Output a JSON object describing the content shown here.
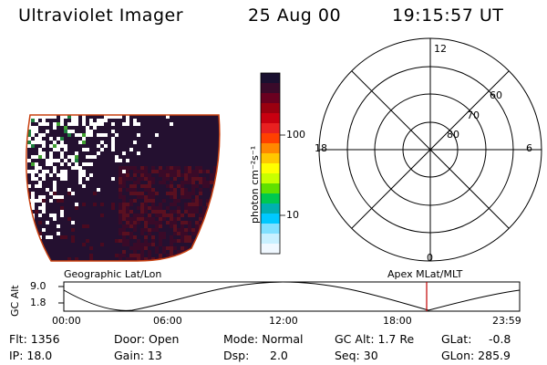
{
  "header": {
    "title": "Ultraviolet Imager",
    "date": "25 Aug 00",
    "time": "19:15:57 UT"
  },
  "colorbar": {
    "unit_label": "photon cm⁻²s⁻¹",
    "ticks": [
      "100",
      "10"
    ],
    "colors": [
      "#1a1030",
      "#3a0a2a",
      "#6a0020",
      "#9a0010",
      "#c80010",
      "#e82020",
      "#ff4000",
      "#ff8800",
      "#ffc800",
      "#ffff00",
      "#c8ff00",
      "#60e000",
      "#00c850",
      "#00b0b0",
      "#00c8ff",
      "#80e0ff",
      "#c8f0ff",
      "#f0f8ff"
    ]
  },
  "polar": {
    "mlt_labels": {
      "top": "12",
      "left": "18",
      "right": "6",
      "bottom": "0"
    },
    "lat_labels": [
      "60",
      "70",
      "80"
    ]
  },
  "plot": {
    "left_label": "Geographic Lat/Lon",
    "right_label": "Apex MLat/MLT",
    "y_axis_label": "GC Alt",
    "y_ticks": [
      "9.0",
      "1.8"
    ],
    "x_ticks": [
      "00:00",
      "06:00",
      "12:00",
      "18:00",
      "23:59"
    ]
  },
  "info": {
    "flt": "Flt: 1356",
    "ip": "IP: 18.0",
    "door": "Door: Open",
    "gain": "Gain: 13",
    "mode": "Mode: Normal",
    "dsp": "Dsp:",
    "dsp_value": "2.0",
    "gc_alt": "GC Alt: 1.7 Re",
    "seq": "Seq: 30",
    "glat": "GLat:",
    "glat_value": "-0.8",
    "glon": "GLon: 285.9"
  }
}
